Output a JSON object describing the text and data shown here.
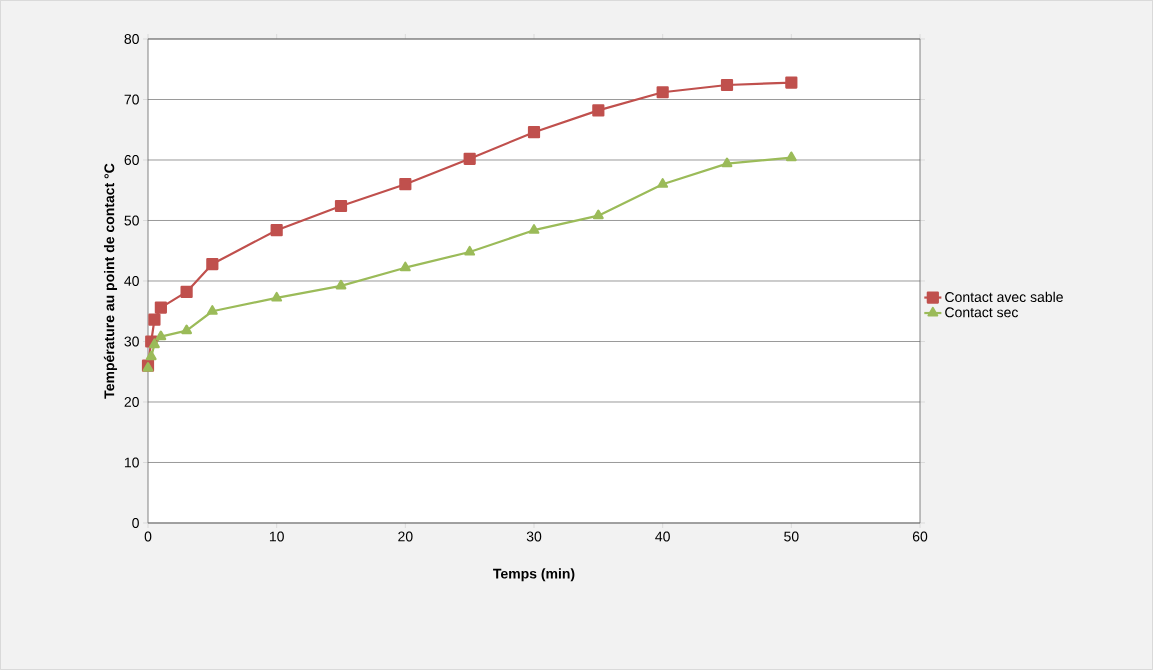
{
  "chart_data": {
    "type": "line",
    "xlabel": "Temps (min)",
    "ylabel": "Température au point de contact °C",
    "xlim": [
      0,
      60
    ],
    "xticks": [
      0,
      10,
      20,
      30,
      40,
      50,
      60
    ],
    "ylim": [
      0,
      80
    ],
    "yticks": [
      0,
      10,
      20,
      30,
      40,
      50,
      60,
      70,
      80
    ],
    "grid": "y",
    "legend": "right",
    "line_style": "solid",
    "x": [
      0,
      0.25,
      0.5,
      1,
      3,
      5,
      10,
      15,
      20,
      25,
      30,
      35,
      40,
      45,
      50
    ],
    "series": [
      {
        "name": "Contact avec sable",
        "color": "#c0504d",
        "marker": "square",
        "values": [
          26,
          30,
          33.6,
          35.6,
          38.2,
          42.8,
          48.4,
          52.4,
          56,
          60.2,
          64.6,
          68.2,
          71.2,
          72.4,
          72.8
        ]
      },
      {
        "name": "Contact sec",
        "color": "#9bbb59",
        "marker": "triangle",
        "values": [
          25.6,
          27.5,
          29.5,
          30.8,
          31.8,
          35,
          37.2,
          39.2,
          42.2,
          44.8,
          48.4,
          50.8,
          56,
          59.4,
          60.4
        ]
      }
    ]
  }
}
